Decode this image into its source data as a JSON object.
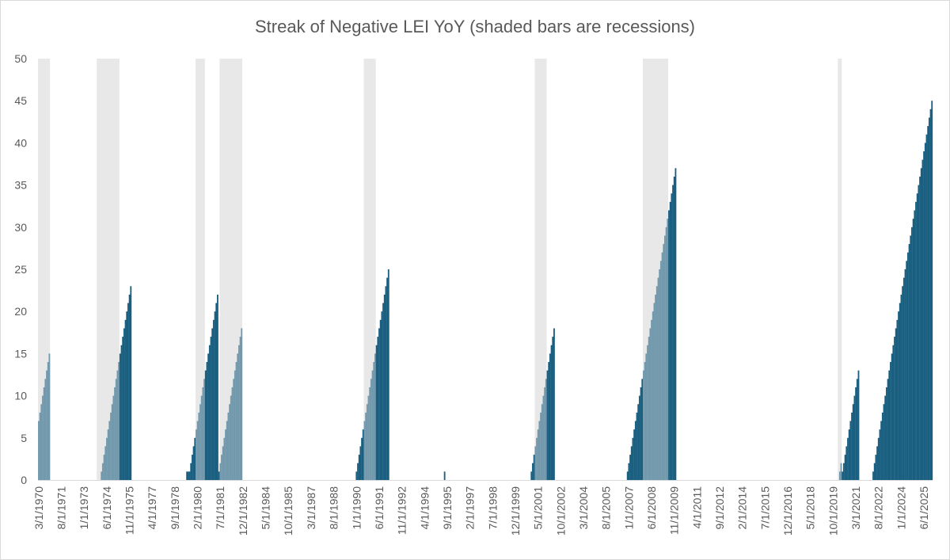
{
  "chart_data": {
    "type": "bar",
    "title": "Streak of Negative LEI YoY (shaded bars are recessions)",
    "xlabel": "",
    "ylabel": "",
    "ylim": [
      0,
      50
    ],
    "yticks": [
      0,
      5,
      10,
      15,
      20,
      25,
      30,
      35,
      40,
      45,
      50
    ],
    "x_start": "3/1/1970",
    "x_end": "12/1/2025",
    "x_frequency": "monthly",
    "x_tick_labels": [
      "3/1/1970",
      "8/1/1971",
      "1/1/1973",
      "6/1/1974",
      "11/1/1975",
      "4/1/1977",
      "9/1/1978",
      "2/1/1980",
      "7/1/1981",
      "12/1/1982",
      "5/1/1984",
      "10/1/1985",
      "3/1/1987",
      "8/1/1988",
      "1/1/1990",
      "6/1/1991",
      "11/1/1992",
      "4/1/1994",
      "9/1/1995",
      "2/1/1997",
      "7/1/1998",
      "12/1/1999",
      "5/1/2001",
      "10/1/2002",
      "3/1/2004",
      "8/1/2005",
      "1/1/2007",
      "6/1/2008",
      "11/1/2009",
      "4/1/2011",
      "9/1/2012",
      "2/1/2014",
      "7/1/2015",
      "12/1/2016",
      "5/1/2018",
      "10/1/2019",
      "3/1/2021",
      "8/1/2022",
      "1/1/2024",
      "6/1/2025"
    ],
    "grid": false,
    "legend": "none",
    "bar_color": "#1a5f80",
    "recession_bar_color": "#7399ad",
    "recession_shade_color": "#e8e8e8",
    "recessions": [
      {
        "start": "3/1/1970",
        "end": "11/1/1970"
      },
      {
        "start": "11/1/1973",
        "end": "3/1/1975"
      },
      {
        "start": "1/1/1980",
        "end": "7/1/1980"
      },
      {
        "start": "7/1/1981",
        "end": "11/1/1982"
      },
      {
        "start": "7/1/1990",
        "end": "3/1/1991"
      },
      {
        "start": "3/1/2001",
        "end": "11/1/2001"
      },
      {
        "start": "12/1/2007",
        "end": "6/1/2009"
      },
      {
        "start": "2/1/2020",
        "end": "4/1/2020"
      }
    ],
    "streaks": [
      {
        "end": "11/1/1970",
        "peak": 15
      },
      {
        "end": "12/1/1975",
        "peak": 23
      },
      {
        "start": "6/1/1979",
        "peak": 1
      },
      {
        "end": "7/1/1980",
        "peak": 13
      },
      {
        "start": "2/1/1980",
        "peak": 3
      },
      {
        "end": "5/1/1981",
        "peak": 22
      },
      {
        "end": "11/1/1982",
        "peak": 18
      },
      {
        "end": "1/1/1992",
        "peak": 25
      },
      {
        "end": "7/1/1995",
        "peak": 1
      },
      {
        "end": "5/1/2002",
        "peak": 18
      },
      {
        "end": "12/1/2009",
        "peak": 37
      },
      {
        "end": "5/1/2020",
        "peak": 3
      },
      {
        "end": "5/1/2021",
        "peak": 13
      },
      {
        "end": "12/1/2025",
        "peak": 45
      }
    ]
  }
}
